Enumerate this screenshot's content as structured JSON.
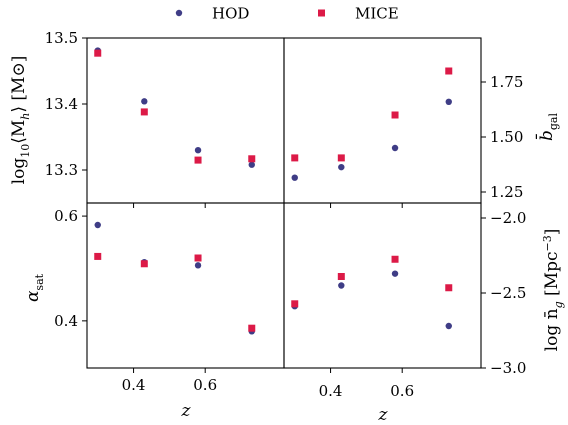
{
  "legend": [
    {
      "name": "HOD",
      "color": "#3f3d86",
      "marker": "circle"
    },
    {
      "name": "MICE",
      "color": "#dc1a47",
      "marker": "square"
    }
  ],
  "chart_data": [
    {
      "type": "scatter",
      "panel": "top-left",
      "ylabel": "log10⟨Mh⟩ [M⊙]",
      "ylabel_parts": {
        "base": "log",
        "sub": "10",
        "expr": "⟨M",
        "expr_sub": "h",
        "tail": "⟩ [M⊙]"
      },
      "ylim": [
        13.25,
        13.5
      ],
      "yticks": [
        13.3,
        13.4,
        13.5
      ],
      "yticklabels": [
        "13.3",
        "13.4",
        "13.5"
      ],
      "xlim": [
        0.27,
        0.82
      ],
      "series": [
        {
          "name": "HOD",
          "x": [
            0.3,
            0.43,
            0.58,
            0.73
          ],
          "y": [
            13.481,
            13.404,
            13.33,
            13.308
          ]
        },
        {
          "name": "MICE",
          "x": [
            0.3,
            0.43,
            0.58,
            0.73
          ],
          "y": [
            13.477,
            13.388,
            13.315,
            13.317
          ]
        }
      ]
    },
    {
      "type": "scatter",
      "panel": "top-right",
      "ylabel": "b̄gal",
      "ylabel_parts": {
        "base": "b̄",
        "sub": "gal"
      },
      "ylim": [
        1.2,
        1.95
      ],
      "yticks": [
        1.25,
        1.5,
        1.75
      ],
      "yticklabels": [
        "1.25",
        "1.50",
        "1.75"
      ],
      "xlim": [
        0.27,
        0.82
      ],
      "series": [
        {
          "name": "HOD",
          "x": [
            0.3,
            0.43,
            0.58,
            0.73
          ],
          "y": [
            1.315,
            1.363,
            1.45,
            1.66
          ]
        },
        {
          "name": "MICE",
          "x": [
            0.3,
            0.43,
            0.58,
            0.73
          ],
          "y": [
            1.405,
            1.405,
            1.6,
            1.8
          ]
        }
      ]
    },
    {
      "type": "scatter",
      "panel": "bottom-left",
      "ylabel": "αsat",
      "ylabel_parts": {
        "base": "α",
        "sub": "sat"
      },
      "ylim": [
        0.31,
        0.625
      ],
      "yticks": [
        0.4,
        0.6
      ],
      "yticklabels": [
        "0.4",
        "0.6"
      ],
      "xlim": [
        0.27,
        0.82
      ],
      "xticks": [
        0.4,
        0.6
      ],
      "xticklabels": [
        "0.4",
        "0.6"
      ],
      "xlabel": "z",
      "series": [
        {
          "name": "HOD",
          "x": [
            0.3,
            0.43,
            0.58,
            0.73
          ],
          "y": [
            0.583,
            0.512,
            0.506,
            0.38
          ]
        },
        {
          "name": "MICE",
          "x": [
            0.3,
            0.43,
            0.58,
            0.73
          ],
          "y": [
            0.523,
            0.509,
            0.52,
            0.386
          ]
        }
      ]
    },
    {
      "type": "scatter",
      "panel": "bottom-right",
      "ylabel": "log n̄g [Mpc−3]",
      "ylabel_parts": {
        "base": "log n̄",
        "sub": "g",
        "tail": " [Mpc",
        "sup": "−3",
        "close": "]"
      },
      "ylim": [
        -3.0,
        -1.9
      ],
      "yticks": [
        -3.0,
        -2.5,
        -2.0
      ],
      "yticklabels": [
        "−3.0",
        "−2.5",
        "−2.0"
      ],
      "xlim": [
        0.27,
        0.82
      ],
      "xticks": [
        0.4,
        0.6
      ],
      "xticklabels": [
        "0.4",
        "0.6"
      ],
      "xlabel": "z",
      "series": [
        {
          "name": "HOD",
          "x": [
            0.3,
            0.43,
            0.58,
            0.73
          ],
          "y": [
            -2.588,
            -2.45,
            -2.371,
            -2.72
          ]
        },
        {
          "name": "MICE",
          "x": [
            0.3,
            0.43,
            0.58,
            0.73
          ],
          "y": [
            -2.572,
            -2.39,
            -2.275,
            -2.465
          ]
        }
      ]
    }
  ]
}
